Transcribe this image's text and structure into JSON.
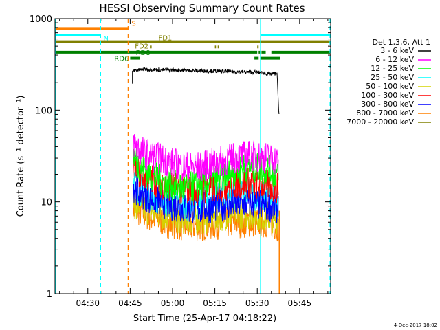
{
  "chart_data": {
    "type": "line",
    "title": "HESSI Observing Summary Count Rates",
    "xlabel": "Start Time (25-Apr-17 04:18:22)",
    "ylabel": "Count Rate (s⁻¹ detector⁻¹)",
    "yscale": "log",
    "ylim": [
      1,
      1000
    ],
    "xlim_minutes": [
      18.37,
      116.0
    ],
    "x_ticks": [
      "04:30",
      "04:45",
      "05:00",
      "05:15",
      "05:30",
      "05:45"
    ],
    "x_tick_minutes": [
      30,
      45,
      60,
      75,
      90,
      105
    ],
    "y_ticks": [
      "1",
      "10",
      "100",
      "1000"
    ],
    "y_tick_values": [
      1,
      10,
      100,
      1000
    ],
    "legend": {
      "title": "Det 1,3,6, Att 1",
      "position": "right",
      "entries": [
        {
          "label": "3 - 6 keV",
          "color": "#000000"
        },
        {
          "label": "6 - 12 keV",
          "color": "#ff00ff"
        },
        {
          "label": "12 - 25 keV",
          "color": "#00ff00"
        },
        {
          "label": "25 - 50 keV",
          "color": "#00ffff"
        },
        {
          "label": "50 - 100 keV",
          "color": "#d4d400"
        },
        {
          "label": "100 - 300 keV",
          "color": "#ff0000"
        },
        {
          "label": "300 - 800 keV",
          "color": "#0000ff"
        },
        {
          "label": "800 - 7000 keV",
          "color": "#ff8000"
        },
        {
          "label": "7000 - 20000 keV",
          "color": "#808000"
        }
      ]
    },
    "series": [
      {
        "name": "3 - 6 keV",
        "color": "#000000",
        "x": [
          46,
          50,
          60,
          70,
          80,
          90,
          94,
          97,
          97.5,
          97.8
        ],
        "y": [
          270,
          280,
          275,
          270,
          265,
          260,
          250,
          250,
          120,
          80
        ]
      },
      {
        "name": "6 - 12 keV",
        "color": "#ff00ff",
        "x": [
          46,
          48,
          52,
          58,
          64,
          70,
          76,
          82,
          88,
          94,
          97.5
        ],
        "y": [
          45,
          38,
          32,
          28,
          24,
          24,
          27,
          30,
          32,
          30,
          28
        ]
      },
      {
        "name": "12 - 25 keV",
        "color": "#00ff00",
        "x": [
          46,
          48,
          52,
          58,
          64,
          70,
          76,
          82,
          88,
          94,
          97.5
        ],
        "y": [
          35,
          25,
          20,
          16,
          14,
          15,
          18,
          22,
          24,
          22,
          20
        ]
      },
      {
        "name": "25 - 50 keV",
        "color": "#00ffff",
        "x": [
          46,
          48,
          52,
          58,
          64,
          70,
          76,
          82,
          88,
          94,
          97.5
        ],
        "y": [
          18,
          14,
          12,
          10,
          9,
          10,
          11,
          12,
          12,
          11,
          10
        ]
      },
      {
        "name": "50 - 100 keV",
        "color": "#d4d400",
        "x": [
          46,
          48,
          52,
          58,
          64,
          70,
          76,
          82,
          88,
          94,
          97.5
        ],
        "y": [
          10,
          9,
          8,
          7,
          6.5,
          6.5,
          7,
          7.5,
          7.5,
          7,
          6.5
        ]
      },
      {
        "name": "100 - 300 keV",
        "color": "#ff0000",
        "x": [
          46,
          48,
          52,
          58,
          64,
          70,
          76,
          82,
          88,
          94,
          97.5
        ],
        "y": [
          24,
          21,
          18,
          15,
          13.5,
          13.5,
          14.5,
          16,
          16,
          15,
          14
        ]
      },
      {
        "name": "300 - 800 keV",
        "color": "#0000ff",
        "x": [
          46,
          48,
          52,
          58,
          64,
          70,
          76,
          82,
          88,
          94,
          97.5
        ],
        "y": [
          15,
          13,
          11,
          9.5,
          8.5,
          8.5,
          9,
          9.5,
          9.5,
          9,
          8.5
        ]
      },
      {
        "name": "800 - 7000 keV",
        "color": "#ff8000",
        "x": [
          46,
          48,
          52,
          58,
          64,
          70,
          76,
          82,
          88,
          94,
          97.5
        ],
        "y": [
          9,
          8,
          7,
          6,
          5.5,
          5.5,
          5.8,
          6,
          6,
          6,
          5.5
        ]
      },
      {
        "name": "7000 - 20000 keV",
        "color": "#808000",
        "x": [],
        "y": []
      }
    ],
    "annotations": {
      "vertical_lines": [
        {
          "minute": 18.5,
          "color": "#00ffff",
          "style": "solid"
        },
        {
          "minute": 34.5,
          "color": "#00ffff",
          "style": "dashed"
        },
        {
          "minute": 44.3,
          "color": "#ff8000",
          "style": "dashed"
        },
        {
          "minute": 91.2,
          "color": "#00ffff",
          "style": "solid"
        },
        {
          "minute": 115.8,
          "color": "#00ffff",
          "style": "dashed"
        }
      ],
      "flag_bars": [
        {
          "label": "S",
          "color": "#ff8000",
          "segments": [
            [
              18.5,
              44.3
            ]
          ],
          "level": 780
        },
        {
          "label": "N",
          "color": "#00ffff",
          "segments": [
            [
              18.5,
              34.5
            ],
            [
              91.2,
              115.8
            ]
          ],
          "level": 660
        },
        {
          "label": "FD1",
          "color": "#808000",
          "segments": [
            [
              18.5,
              115.8
            ]
          ],
          "level": 560
        },
        {
          "label": "FD2",
          "color": "#808000",
          "segments": [
            [
              52,
              52.6
            ],
            [
              75,
              75.4
            ],
            [
              76,
              76.4
            ],
            [
              90,
              90.5
            ]
          ],
          "level": 490
        },
        {
          "label": "RD8",
          "color": "#008000",
          "segments": [
            [
              18.5,
              90
            ],
            [
              90.5,
              91
            ],
            [
              91.5,
              93
            ],
            [
              95,
              115.8
            ]
          ],
          "level": 430
        },
        {
          "label": "RD6",
          "color": "#008000",
          "segments": [
            [
              45,
              48.5
            ],
            [
              89,
              90.5
            ],
            [
              91,
              98
            ]
          ],
          "level": 370
        }
      ]
    }
  },
  "footer": {
    "timestamp": "4-Dec-2017 18:02"
  }
}
